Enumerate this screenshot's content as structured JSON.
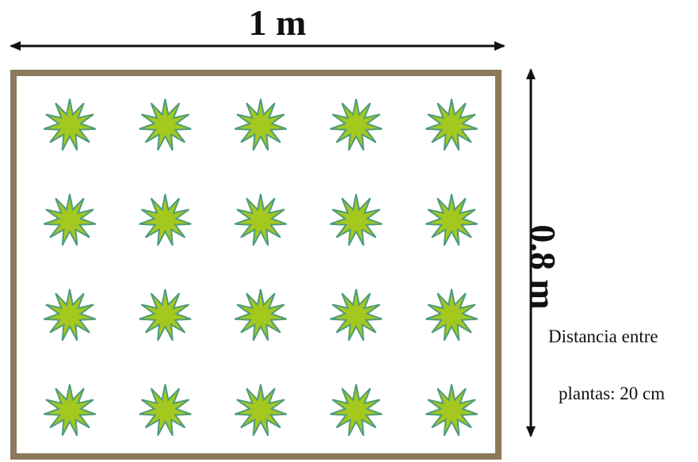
{
  "labels": {
    "width": "1 m",
    "height": "0.8 m"
  },
  "note": {
    "line1": "Distancia entre",
    "line2": "plantas: 20 cm"
  },
  "grid": {
    "columns": 5,
    "rows": 4
  },
  "colors": {
    "border": "#8b7a5c",
    "plant_fill": "#a4c81e",
    "plant_stroke": "#4f9c7c",
    "arrow": "#111111"
  },
  "icons": {
    "plant": "plant-star-icon"
  }
}
